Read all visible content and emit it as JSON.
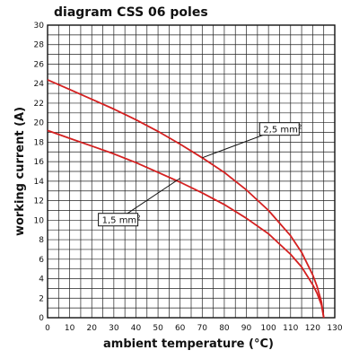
{
  "chart_data": {
    "type": "line",
    "title": "diagram CSS 06 poles",
    "xlabel": "ambient temperature (°C)",
    "ylabel": "working current (A)",
    "xlim": [
      0,
      130
    ],
    "ylim": [
      0,
      30
    ],
    "xticks": [
      0,
      10,
      20,
      30,
      40,
      50,
      60,
      70,
      80,
      90,
      100,
      110,
      120,
      130
    ],
    "yticks": [
      0,
      2,
      4,
      6,
      8,
      10,
      12,
      14,
      16,
      18,
      20,
      22,
      24,
      26,
      28,
      30
    ],
    "minor_grid_step_x": 5,
    "minor_grid_step_y": 1,
    "grid": true,
    "series": [
      {
        "name": "2,5 mm²",
        "color": "#d42020",
        "x": [
          0,
          10,
          20,
          30,
          40,
          50,
          60,
          70,
          80,
          90,
          100,
          110,
          115,
          120,
          122,
          124,
          125
        ],
        "y": [
          24.4,
          23.4,
          22.4,
          21.4,
          20.3,
          19.1,
          17.8,
          16.4,
          14.9,
          13.1,
          11.0,
          8.4,
          6.7,
          4.4,
          3.2,
          1.6,
          0
        ]
      },
      {
        "name": "1,5 mm²",
        "color": "#d42020",
        "x": [
          0,
          10,
          20,
          30,
          40,
          50,
          60,
          70,
          80,
          90,
          100,
          110,
          115,
          120,
          122,
          124,
          125
        ],
        "y": [
          19.2,
          18.4,
          17.6,
          16.8,
          15.9,
          14.9,
          13.9,
          12.8,
          11.6,
          10.2,
          8.6,
          6.5,
          5.2,
          3.4,
          2.5,
          1.3,
          0
        ]
      }
    ],
    "annotations": [
      {
        "label": "2,5 mm",
        "superscript": "2",
        "at_x": 70,
        "at_y": 16.4,
        "label_x": 96,
        "label_y": 20
      },
      {
        "label": "1,5 mm",
        "superscript": "2",
        "at_x": 60,
        "at_y": 14.3,
        "label_x": 23,
        "label_y": 10.7
      }
    ]
  }
}
